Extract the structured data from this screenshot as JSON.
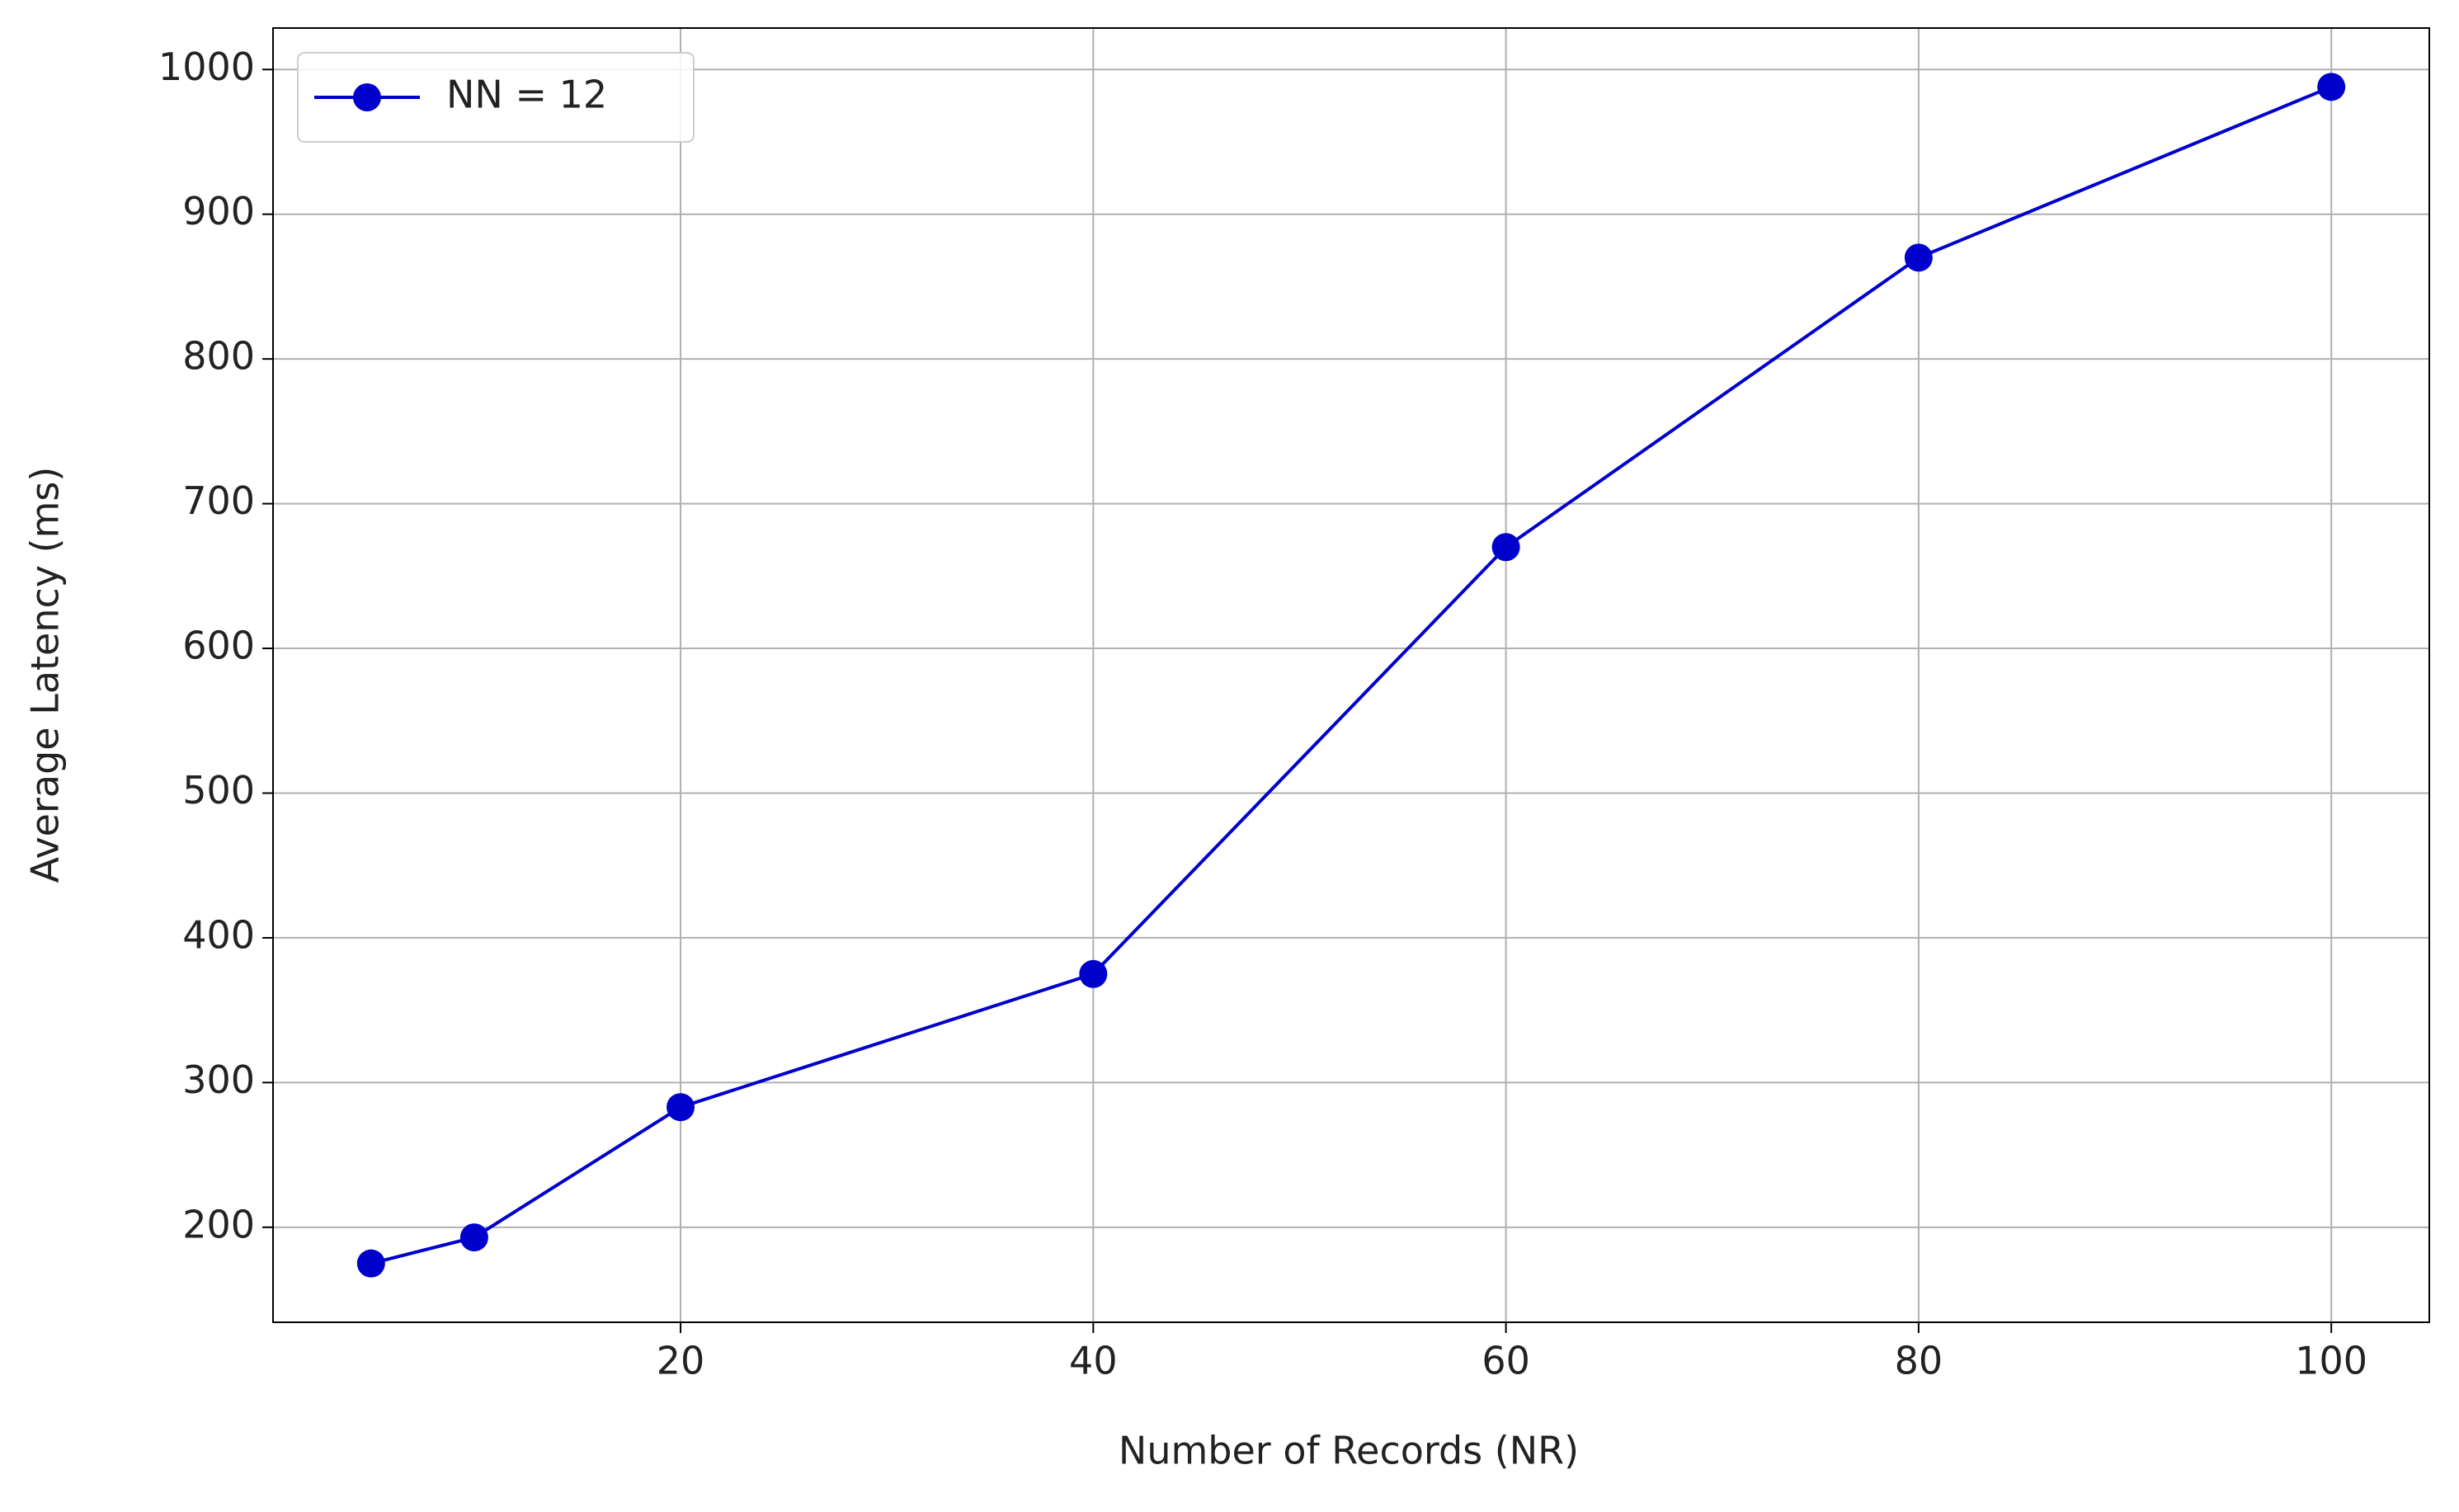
{
  "chart_data": {
    "type": "line",
    "xlabel": "Number of Records (NR)",
    "ylabel": "Average Latency (ms)",
    "x": [
      5,
      10,
      20,
      40,
      60,
      80,
      100
    ],
    "series": [
      {
        "name": "NN = 12",
        "color": "#0000cd",
        "values": [
          175,
          193,
          283,
          375,
          670,
          870,
          988
        ]
      }
    ],
    "xlim": [
      0.25,
      104.75
    ],
    "xticks": [
      20,
      40,
      60,
      80,
      100
    ],
    "ylim": [
      134.35,
      1028.65
    ],
    "yticks": [
      200,
      300,
      400,
      500,
      600,
      700,
      800,
      900,
      1000
    ],
    "grid": true,
    "legend": "upper-left"
  }
}
